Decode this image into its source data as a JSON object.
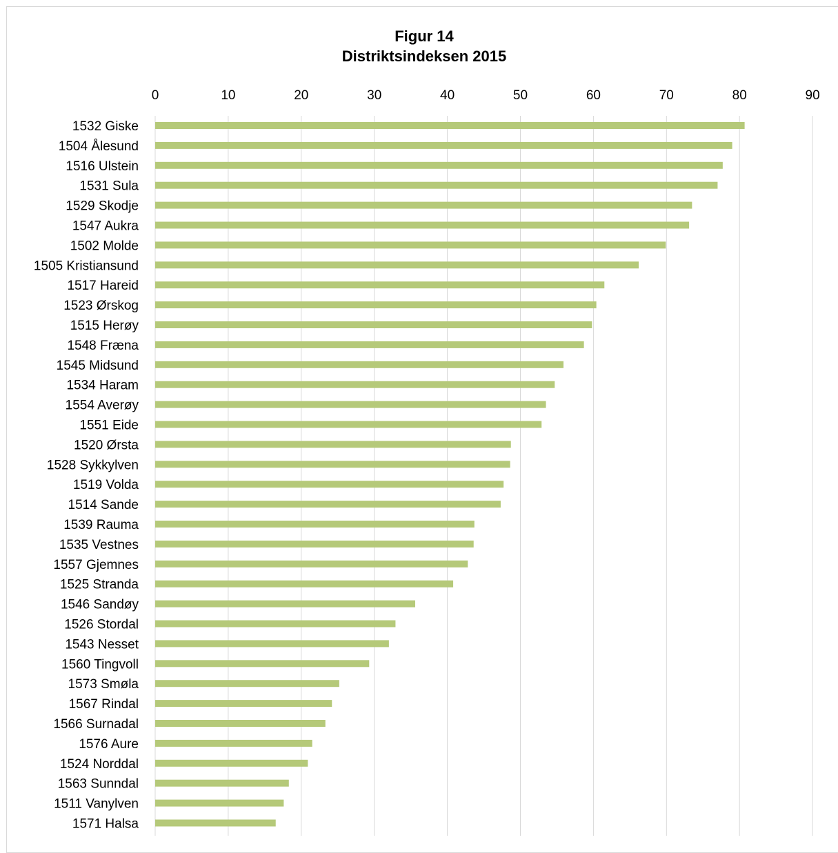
{
  "chart_data": {
    "type": "bar",
    "orientation": "horizontal",
    "title": "Figur 14",
    "subtitle": "Distriktsindeksen 2015",
    "xlabel": "",
    "ylabel": "",
    "xlim": [
      0,
      90
    ],
    "x_ticks": [
      0,
      10,
      20,
      30,
      40,
      50,
      60,
      70,
      80,
      90
    ],
    "x_axis_position": "top",
    "grid": "vertical",
    "legend": "none",
    "bar_color": "#b5c979",
    "categories": [
      "1532 Giske",
      "1504 Ålesund",
      "1516 Ulstein",
      "1531 Sula",
      "1529 Skodje",
      "1547 Aukra",
      "1502 Molde",
      "1505 Kristiansund",
      "1517 Hareid",
      "1523 Ørskog",
      "1515 Herøy",
      "1548 Fræna",
      "1545 Midsund",
      "1534 Haram",
      "1554 Averøy",
      "1551 Eide",
      "1520 Ørsta",
      "1528 Sykkylven",
      "1519 Volda",
      "1514 Sande",
      "1539 Rauma",
      "1535 Vestnes",
      "1557 Gjemnes",
      "1525 Stranda",
      "1546 Sandøy",
      "1526 Stordal",
      "1543 Nesset",
      "1560 Tingvoll",
      "1573 Smøla",
      "1567 Rindal",
      "1566 Surnadal",
      "1576 Aure",
      "1524 Norddal",
      "1563 Sunndal",
      "1511 Vanylven",
      "1571 Halsa"
    ],
    "values": [
      80.7,
      79.0,
      77.7,
      77.0,
      73.5,
      73.1,
      69.9,
      66.2,
      61.5,
      60.4,
      59.8,
      58.7,
      55.9,
      54.7,
      53.5,
      52.9,
      48.7,
      48.6,
      47.7,
      47.3,
      43.7,
      43.6,
      42.8,
      40.8,
      35.6,
      32.9,
      32.0,
      29.3,
      25.2,
      24.2,
      23.3,
      21.5,
      20.9,
      18.3,
      17.6,
      16.5
    ]
  }
}
